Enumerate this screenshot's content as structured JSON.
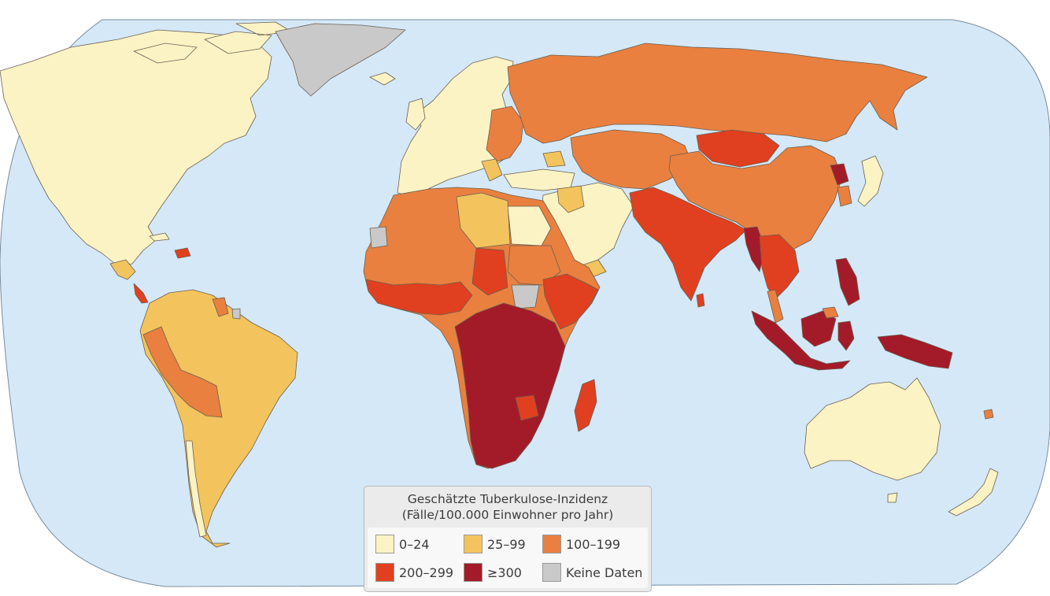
{
  "legend": {
    "title": "Geschätzte Tuberkulose-Inzidenz",
    "subtitle": "(Fälle/100.000 Einwohner pro Jahr)",
    "items": [
      {
        "label": "0–24",
        "color": "#fcf3c4"
      },
      {
        "label": "25–99",
        "color": "#f3c45d"
      },
      {
        "label": "100–199",
        "color": "#e9803f"
      },
      {
        "label": "200–299",
        "color": "#e0401f"
      },
      {
        "label": "≥300",
        "color": "#a31b28"
      },
      {
        "label": "Keine Daten",
        "color": "#c9c9c9"
      }
    ]
  },
  "colors": {
    "ocean": "#d5e8f8",
    "background": "#ffffff",
    "border": "#6a5f52"
  }
}
